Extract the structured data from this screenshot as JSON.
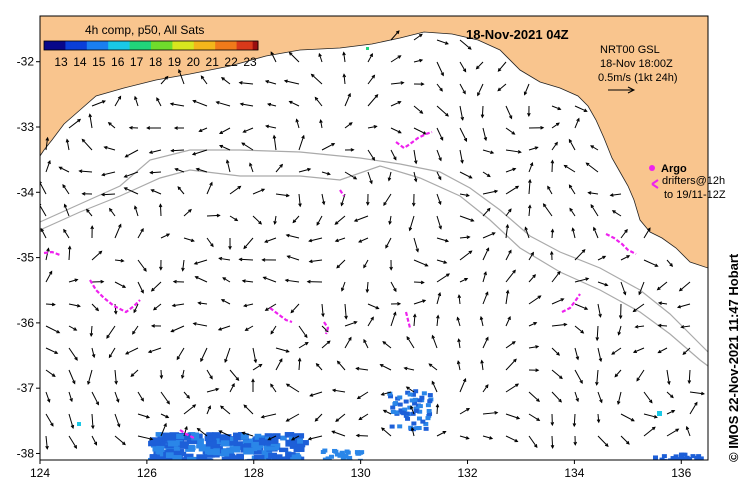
{
  "title": "18-Nov-2021 04Z",
  "colorbar": {
    "title": "4h comp, p50, All Sats",
    "ticks": [
      "13",
      "14",
      "15",
      "16",
      "17",
      "18",
      "19",
      "20",
      "21",
      "22",
      "23"
    ],
    "colors": [
      "#08088a",
      "#0a3fd8",
      "#1a7ff0",
      "#19c8e6",
      "#21d47a",
      "#6fdc2c",
      "#d8e61e",
      "#f3b61b",
      "#f07a1a",
      "#d9391a",
      "#9a0f0f"
    ]
  },
  "legend": {
    "model": "NRT00 GSL",
    "time": "18-Nov 18:00Z",
    "scale": "0.5m/s (1kt 24h)"
  },
  "argo": {
    "label": "Argo",
    "drifters_line1": "drifters@12h",
    "drifters_line2": "to 19/11-12Z"
  },
  "credit": "© IMOS 22-Nov-2021 11:47 Hobart",
  "axes": {
    "x_ticks": [
      "124",
      "126",
      "128",
      "130",
      "132",
      "134",
      "136"
    ],
    "y_ticks": [
      "-32",
      "-33",
      "-34",
      "-35",
      "-36",
      "-37",
      "-38"
    ],
    "lon_range": [
      124,
      136.5
    ],
    "lat_range": [
      -38.1,
      -31.3
    ]
  },
  "colors": {
    "land": "#f9c58e",
    "drifter": "#ee22ee",
    "bathy": "#aaaaaa",
    "sst_cold": "#1d5fd8"
  }
}
